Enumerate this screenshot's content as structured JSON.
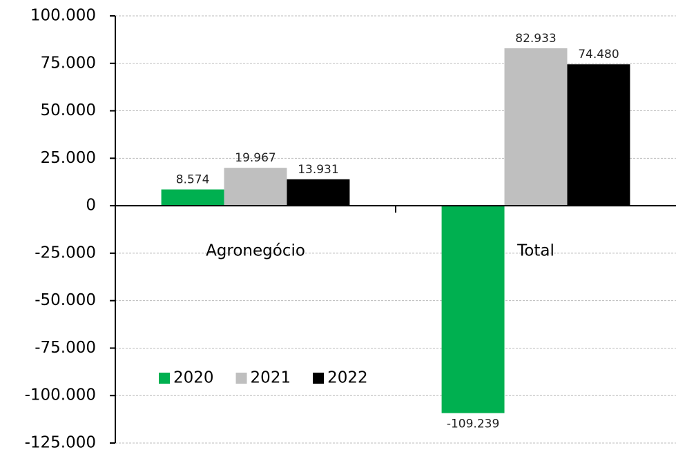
{
  "chart_data": {
    "type": "bar",
    "categories": [
      "Agronegócio",
      "Total"
    ],
    "series": [
      {
        "name": "2020",
        "color": "#00b050",
        "values": [
          8574,
          -109239
        ],
        "value_labels": [
          "8.574",
          "-109.239"
        ]
      },
      {
        "name": "2021",
        "color": "#bfbfbf",
        "values": [
          19967,
          82933
        ],
        "value_labels": [
          "19.967",
          "82.933"
        ]
      },
      {
        "name": "2022",
        "color": "#000000",
        "values": [
          13931,
          74480
        ],
        "value_labels": [
          "13.931",
          "74.480"
        ]
      }
    ],
    "ylim": [
      -125000,
      100000
    ],
    "yticks": [
      {
        "value": -125000,
        "label": "-125.000"
      },
      {
        "value": -100000,
        "label": "-100.000"
      },
      {
        "value": -75000,
        "label": "-75.000"
      },
      {
        "value": -50000,
        "label": "-50.000"
      },
      {
        "value": -25000,
        "label": "-25.000"
      },
      0,
      {
        "value": 25000,
        "label": "25.000"
      },
      {
        "value": 50000,
        "label": "50.000"
      },
      {
        "value": 75000,
        "label": "75.000"
      },
      {
        "value": 100000,
        "label": "100.000"
      }
    ],
    "grid": true,
    "legend": "lower left"
  }
}
